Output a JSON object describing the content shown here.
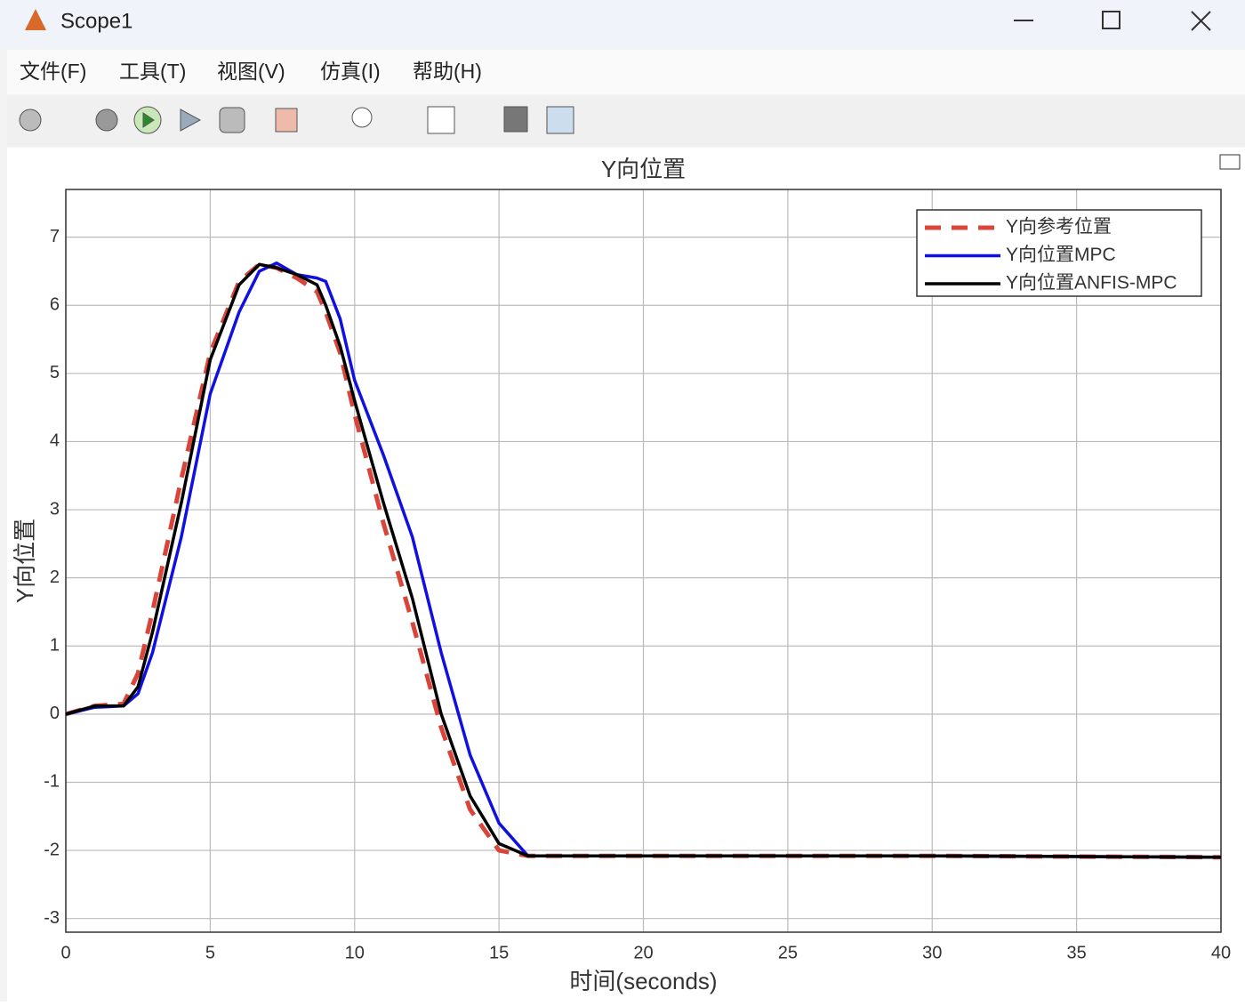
{
  "window_title": "Scope1",
  "menu": [
    "文件(F)",
    "工具(T)",
    "视图(V)",
    "仿真(I)",
    "帮助(H)"
  ],
  "chart_data": {
    "type": "line",
    "title": "Y向位置",
    "xlabel": "时间(seconds)",
    "ylabel": "Y向位置",
    "x": [
      0,
      1,
      2,
      2.5,
      3,
      4,
      5,
      6,
      6.7,
      7.3,
      8,
      8.7,
      9,
      9.5,
      10,
      11,
      12,
      13,
      14,
      15,
      16,
      20,
      30,
      40
    ],
    "series": [
      {
        "name": "Y向参考位置",
        "color": "#d9453a",
        "dashed": true,
        "values": [
          0,
          0.12,
          0.15,
          0.6,
          1.5,
          3.45,
          5.3,
          6.35,
          6.6,
          6.55,
          6.4,
          6.2,
          5.9,
          5.3,
          4.4,
          2.8,
          1.35,
          -0.2,
          -1.4,
          -2.0,
          -2.08,
          -2.08,
          -2.08,
          -2.1
        ]
      },
      {
        "name": "Y向位置MPC",
        "color": "#1010e0",
        "dashed": false,
        "values": [
          0,
          0.1,
          0.12,
          0.3,
          0.9,
          2.6,
          4.7,
          5.9,
          6.5,
          6.62,
          6.45,
          6.4,
          6.35,
          5.8,
          4.9,
          3.8,
          2.6,
          0.9,
          -0.6,
          -1.6,
          -2.08,
          -2.08,
          -2.08,
          -2.1
        ]
      },
      {
        "name": "Y向位置ANFIS-MPC",
        "color": "#000000",
        "dashed": false,
        "values": [
          0,
          0.12,
          0.12,
          0.4,
          1.2,
          3.1,
          5.2,
          6.3,
          6.6,
          6.55,
          6.45,
          6.3,
          6.0,
          5.4,
          4.6,
          3.1,
          1.7,
          0.0,
          -1.2,
          -1.9,
          -2.08,
          -2.08,
          -2.08,
          -2.1
        ]
      }
    ],
    "xlim": [
      0,
      40
    ],
    "xticks": [
      0,
      5,
      10,
      15,
      20,
      25,
      30,
      35,
      40
    ],
    "ylim": [
      -3.2,
      7.7
    ],
    "yticks": [
      -3,
      -2,
      -1,
      0,
      1,
      2,
      3,
      4,
      5,
      6,
      7
    ],
    "grid": true,
    "legend": "upper right"
  }
}
